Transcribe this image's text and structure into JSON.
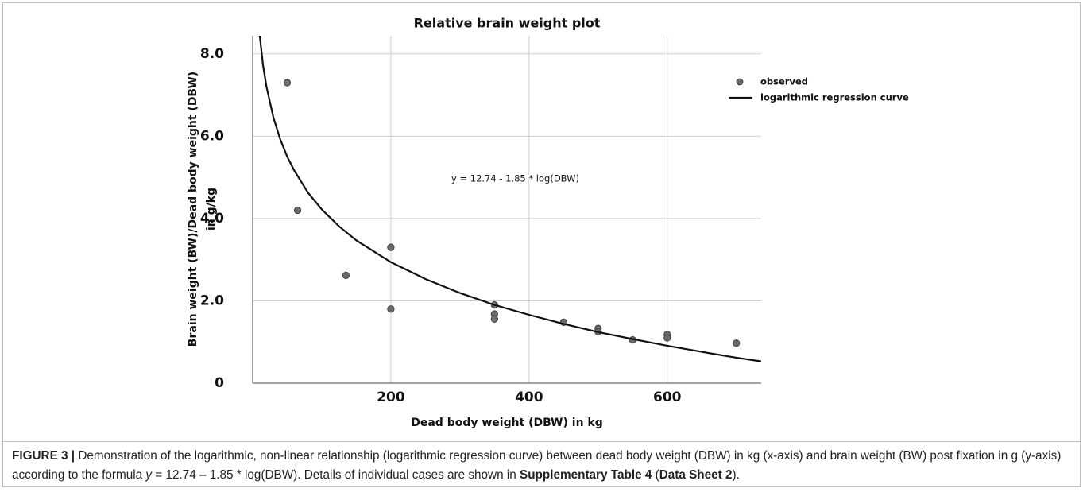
{
  "chart_data": {
    "type": "scatter",
    "title": "Relative brain weight plot",
    "xlabel": "Dead body weight (DBW) in kg",
    "ylabel": [
      "Brain weight (BW)/Dead body weight (DBW)",
      "in g/kg"
    ],
    "annotation": "y = 12.74 - 1.85 * log(DBW)",
    "xlim": [
      0,
      736
    ],
    "ylim": [
      0,
      8.44
    ],
    "xticks": [
      200,
      400,
      600
    ],
    "yticks": [
      0,
      {
        "value": 2,
        "label": "2.0"
      },
      {
        "value": 4,
        "label": "4.0"
      },
      {
        "value": 6,
        "label": "6.0"
      },
      {
        "value": 8,
        "label": "8.0"
      }
    ],
    "grid": true,
    "legend": "upper right",
    "series": [
      {
        "name": "observed",
        "mode": "markers",
        "color": "#6b6b6b",
        "x": [
          50,
          65,
          135,
          200,
          200,
          350,
          350,
          350,
          450,
          500,
          500,
          550,
          600,
          600,
          700
        ],
        "values": [
          7.3,
          4.2,
          2.62,
          3.3,
          1.8,
          1.9,
          1.68,
          1.56,
          1.48,
          1.33,
          1.25,
          1.05,
          1.18,
          1.1,
          0.97
        ]
      },
      {
        "name": "logarithmic regression curve",
        "mode": "lines",
        "color": "#111111",
        "x": [
          10,
          15,
          20,
          30,
          40,
          50,
          60,
          80,
          100,
          125,
          150,
          200,
          250,
          300,
          350,
          400,
          450,
          500,
          550,
          600,
          650,
          700,
          736
        ],
        "values": [
          8.48,
          7.73,
          7.2,
          6.45,
          5.92,
          5.5,
          5.17,
          4.63,
          4.22,
          3.81,
          3.47,
          2.94,
          2.53,
          2.19,
          1.9,
          1.66,
          1.44,
          1.24,
          1.07,
          0.91,
          0.76,
          0.62,
          0.53
        ]
      }
    ]
  },
  "caption": [
    {
      "text": "FIGURE 3 |",
      "bold": true
    },
    {
      "text": " Demonstration of the logarithmic, non-linear relationship (logarithmic regression curve) between dead body weight (DBW) in kg (x-axis) and brain weight (BW) post fixation in g (y-axis) according to the formula "
    },
    {
      "text": "y",
      "italic": true
    },
    {
      "text": " = 12.74 – 1.85 * log(DBW). Details of individual cases are shown in "
    },
    {
      "text": "Supplementary Table 4",
      "bold": true
    },
    {
      "text": " ("
    },
    {
      "text": "Data Sheet 2",
      "bold": true
    },
    {
      "text": ")."
    }
  ]
}
